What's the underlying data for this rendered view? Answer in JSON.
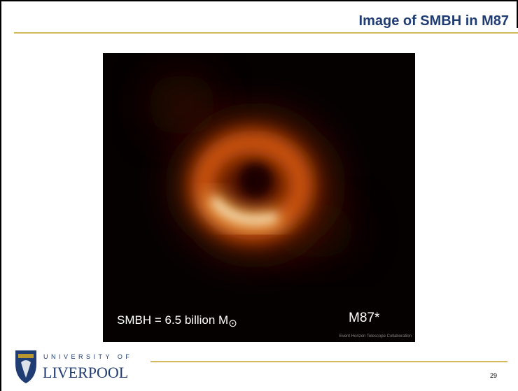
{
  "header": {
    "title": "Image of SMBH in M87"
  },
  "image": {
    "mass_label": {
      "text": "SMBH = 6.5 billion M",
      "subscript": "⊙"
    },
    "object_label": "M87*",
    "credit": "Event Horizon Telescope Collaboration"
  },
  "footer": {
    "logo_top": "UNIVERSITY OF",
    "logo_bottom": "LIVERPOOL",
    "page_number": "29"
  }
}
